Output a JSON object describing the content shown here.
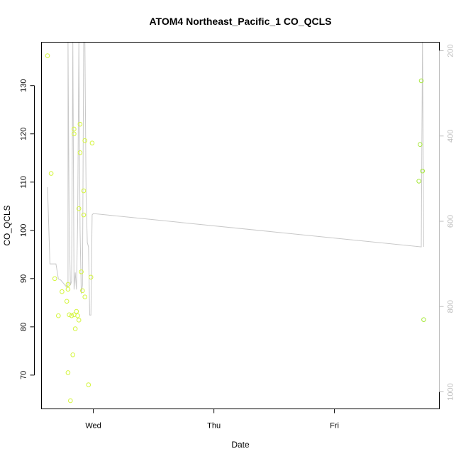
{
  "chart_data": {
    "type": "scatter",
    "title": "ATOM4 Northeast_Pacific_1 CO_QCLS",
    "xlabel": "Date",
    "ylabel": "CO_QCLS",
    "x_unit": "days",
    "xlim": [
      -0.43,
      2.87
    ],
    "ylim": [
      63,
      139
    ],
    "y_ticks": [
      70,
      80,
      90,
      100,
      110,
      120,
      130
    ],
    "x_ticks": [
      {
        "value": 0,
        "label": "Wed"
      },
      {
        "value": 1,
        "label": "Thu"
      },
      {
        "value": 2,
        "label": "Fri"
      }
    ],
    "right_axis": {
      "ticks": [
        200,
        400,
        600,
        800,
        1000
      ],
      "range_top": 180,
      "range_bottom": 1040,
      "color": "#bdbdbd"
    },
    "colors": {
      "points_early": "#d4f53c",
      "points_late": "#a6e83a",
      "profile_line": "#c8c8c8",
      "box": "#000000"
    },
    "series": [
      {
        "kind": "points",
        "values": [
          [
            -0.38,
            136.2
          ],
          [
            -0.35,
            111.8
          ],
          [
            -0.32,
            90.0
          ],
          [
            -0.29,
            82.3
          ],
          [
            -0.26,
            87.3
          ],
          [
            -0.22,
            85.3
          ],
          [
            -0.21,
            88.8
          ],
          [
            -0.21,
            87.8
          ],
          [
            -0.21,
            70.5
          ],
          [
            -0.2,
            82.5
          ],
          [
            -0.19,
            64.7
          ],
          [
            -0.18,
            82.3
          ],
          [
            -0.17,
            74.2
          ],
          [
            -0.16,
            82.5
          ],
          [
            -0.16,
            120.0
          ],
          [
            -0.16,
            121.0
          ],
          [
            -0.15,
            79.6
          ],
          [
            -0.14,
            83.2
          ],
          [
            -0.13,
            82.3
          ],
          [
            -0.12,
            81.4
          ],
          [
            -0.12,
            104.5
          ],
          [
            -0.11,
            122.0
          ],
          [
            -0.11,
            116.1
          ],
          [
            -0.1,
            91.4
          ],
          [
            -0.09,
            87.5
          ],
          [
            -0.08,
            108.2
          ],
          [
            -0.08,
            103.2
          ],
          [
            -0.07,
            118.6
          ],
          [
            -0.07,
            86.2
          ],
          [
            -0.04,
            68.0
          ],
          [
            -0.02,
            90.3
          ],
          [
            -0.01,
            118.1
          ],
          [
            2.7,
            110.2
          ],
          [
            2.71,
            117.8
          ],
          [
            2.72,
            131.0
          ],
          [
            2.73,
            112.3
          ],
          [
            2.74,
            81.5
          ]
        ]
      },
      {
        "kind": "line",
        "values": [
          [
            -0.38,
            520
          ],
          [
            -0.36,
            700
          ],
          [
            -0.33,
            700
          ],
          [
            -0.31,
            700
          ],
          [
            -0.29,
            735
          ],
          [
            -0.27,
            738
          ],
          [
            -0.24,
            748
          ],
          [
            -0.22,
            755
          ],
          [
            -0.21,
            750
          ],
          [
            -0.21,
            180
          ],
          [
            -0.2,
            620
          ],
          [
            -0.19,
            750
          ],
          [
            -0.18,
            740
          ],
          [
            -0.17,
            180
          ],
          [
            -0.16,
            760
          ],
          [
            -0.15,
            720
          ],
          [
            -0.14,
            760
          ],
          [
            -0.13,
            600
          ],
          [
            -0.12,
            180
          ],
          [
            -0.11,
            620
          ],
          [
            -0.1,
            770
          ],
          [
            -0.09,
            750
          ],
          [
            -0.08,
            180
          ],
          [
            -0.07,
            180
          ],
          [
            -0.06,
            540
          ],
          [
            -0.05,
            650
          ],
          [
            -0.04,
            660
          ],
          [
            -0.03,
            820
          ],
          [
            -0.02,
            820
          ],
          [
            -0.01,
            585
          ],
          [
            0.0,
            582
          ],
          [
            2.72,
            660
          ],
          [
            2.73,
            180
          ],
          [
            2.74,
            660
          ]
        ]
      }
    ]
  }
}
